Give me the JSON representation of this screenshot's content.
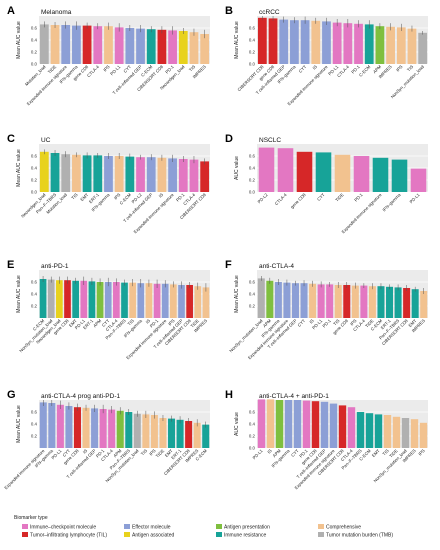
{
  "colors": {
    "immune_checkpoint": "#e377c2",
    "til": "#d62728",
    "effector": "#8c9fd6",
    "antigen_associated": "#e8d21d",
    "antigen_presentation": "#7fbf3f",
    "immune_resistance": "#17a398",
    "comprehensive": "#f2c28f",
    "tmb": "#b0b0b0"
  },
  "legend": {
    "title": "Biomarker type",
    "items": [
      {
        "key": "immune_checkpoint",
        "label": "Immune–checkpoint molecule"
      },
      {
        "key": "effector",
        "label": "Effector molecule"
      },
      {
        "key": "antigen_presentation",
        "label": "Antigen presentation"
      },
      {
        "key": "comprehensive",
        "label": "Comprehensive"
      },
      {
        "key": "til",
        "label": "Tumor–infiltrating lymphocyte (TIL)"
      },
      {
        "key": "antigen_associated",
        "label": "Antigen associated"
      },
      {
        "key": "immune_resistance",
        "label": "Immune resistance"
      },
      {
        "key": "tmb",
        "label": "Tumor mutation burden (TMB)"
      }
    ]
  },
  "chart_data": [
    {
      "panel": "A",
      "title": "Melanoma",
      "type": "bar",
      "ylabel": "Mean AUC value",
      "ylim": [
        0,
        0.8
      ],
      "yticks": [
        0.0,
        0.2,
        0.4,
        0.6
      ],
      "categories": [
        "Mutation_load",
        "TIDE",
        "Expanded immune signature",
        "IFN–gamma",
        "gene CD8",
        "CTLA-4",
        "IPS",
        "PD-L1",
        "CYT",
        "T cell–inflamed GEP",
        "C-ECM",
        "CIBERSORT CD8",
        "PD-1",
        "Neoantigen_load",
        "TIS",
        "IMPRES"
      ],
      "values": [
        0.66,
        0.65,
        0.65,
        0.64,
        0.64,
        0.63,
        0.63,
        0.61,
        0.6,
        0.59,
        0.58,
        0.57,
        0.56,
        0.55,
        0.53,
        0.5
      ],
      "types": [
        "tmb",
        "comprehensive",
        "effector",
        "effector",
        "til",
        "immune_checkpoint",
        "comprehensive",
        "immune_checkpoint",
        "effector",
        "effector",
        "immune_resistance",
        "til",
        "immune_checkpoint",
        "antigen_associated",
        "comprehensive",
        "comprehensive"
      ],
      "errors": [
        0.05,
        0.05,
        0.06,
        0.07,
        0.05,
        0.05,
        0.06,
        0.07,
        0.05,
        0.06,
        0.05,
        0.06,
        0.07,
        0.05,
        0.06,
        0.07
      ]
    },
    {
      "panel": "B",
      "title": "ccRCC",
      "type": "bar",
      "ylabel": "Mean AUC value",
      "ylim": [
        0,
        0.8
      ],
      "yticks": [
        0.0,
        0.2,
        0.4,
        0.6
      ],
      "categories": [
        "CIBERSORT CD8",
        "gene CD8",
        "T cell–inflamed GEP",
        "IFN–gamma",
        "CYT",
        "IS",
        "Expanded immune signature",
        "PD-L1",
        "CTLA-4",
        "PD-1",
        "C-ECM",
        "APM",
        "IMPRES",
        "IPS",
        "TIS",
        "NonSyn_mutation_load"
      ],
      "values": [
        0.77,
        0.76,
        0.74,
        0.73,
        0.73,
        0.72,
        0.71,
        0.69,
        0.68,
        0.67,
        0.66,
        0.63,
        0.62,
        0.61,
        0.59,
        0.52
      ],
      "types": [
        "til",
        "til",
        "effector",
        "effector",
        "effector",
        "comprehensive",
        "effector",
        "immune_checkpoint",
        "immune_checkpoint",
        "immune_checkpoint",
        "immune_resistance",
        "antigen_presentation",
        "comprehensive",
        "comprehensive",
        "comprehensive",
        "tmb"
      ],
      "errors": [
        0.04,
        0.04,
        0.05,
        0.05,
        0.06,
        0.05,
        0.06,
        0.06,
        0.07,
        0.06,
        0.07,
        0.05,
        0.06,
        0.06,
        0.05,
        0.03
      ]
    },
    {
      "panel": "C",
      "title": "UC",
      "type": "bar",
      "ylabel": "Mean AUC value",
      "ylim": [
        0,
        0.8
      ],
      "yticks": [
        0.0,
        0.2,
        0.4,
        0.6
      ],
      "categories": [
        "Neoantigen_load",
        "Pan–F–TBRS",
        "Mutation_load",
        "TIS",
        "EMT",
        "ERT-1",
        "IFN–gamma",
        "IPS",
        "C-ECM",
        "PD-L2",
        "T cell–inflamed GEP",
        "IS",
        "Expanded immune signature",
        "PD-1",
        "CTLA-4",
        "CIBERSORT CD8"
      ],
      "values": [
        0.67,
        0.65,
        0.63,
        0.62,
        0.61,
        0.61,
        0.6,
        0.6,
        0.59,
        0.58,
        0.58,
        0.57,
        0.56,
        0.55,
        0.54,
        0.51
      ],
      "types": [
        "antigen_associated",
        "immune_resistance",
        "tmb",
        "comprehensive",
        "immune_resistance",
        "immune_resistance",
        "effector",
        "comprehensive",
        "immune_resistance",
        "immune_checkpoint",
        "effector",
        "comprehensive",
        "effector",
        "immune_checkpoint",
        "immune_checkpoint",
        "til"
      ],
      "errors": [
        0.04,
        0.05,
        0.05,
        0.04,
        0.05,
        0.04,
        0.05,
        0.05,
        0.05,
        0.04,
        0.05,
        0.05,
        0.06,
        0.05,
        0.06,
        0.05
      ]
    },
    {
      "panel": "D",
      "title": "NSCLC",
      "type": "bar",
      "ylabel": "AUC value",
      "ylim": [
        0,
        0.8
      ],
      "yticks": [
        0.0,
        0.2,
        0.4,
        0.6
      ],
      "categories": [
        "PD-L2",
        "CTLA-4",
        "gene CD8",
        "CYT",
        "TIDE",
        "PD-1",
        "Expanded immune signature",
        "IFN–gamma",
        "PD-L1"
      ],
      "values": [
        0.74,
        0.73,
        0.67,
        0.66,
        0.62,
        0.6,
        0.57,
        0.54,
        0.39
      ],
      "types": [
        "immune_checkpoint",
        "immune_checkpoint",
        "til",
        "immune_resistance",
        "comprehensive",
        "immune_checkpoint",
        "immune_resistance",
        "immune_resistance",
        "immune_checkpoint"
      ]
    },
    {
      "panel": "E",
      "title": "anti-PD-1",
      "type": "bar",
      "ylabel": "Mean AUC value",
      "ylim": [
        0,
        0.8
      ],
      "yticks": [
        0.2,
        0.4,
        0.6
      ],
      "categories": [
        "C-ECM",
        "NonSyn_mutation_load",
        "Neoantigen_load",
        "gene CD8",
        "EMT",
        "PD-L1",
        "ERT-1",
        "APM",
        "CYT",
        "CTLA-4",
        "Pan–F–TBRS",
        "TIS",
        "IFN–gamma",
        "IS",
        "PD-1",
        "Expanded immune signature",
        "IPS",
        "T cell–inflamed GEP",
        "CIBERSORT CD8",
        "TIDE",
        "IMPRES"
      ],
      "values": [
        0.65,
        0.64,
        0.63,
        0.63,
        0.62,
        0.62,
        0.61,
        0.6,
        0.6,
        0.6,
        0.59,
        0.59,
        0.58,
        0.58,
        0.57,
        0.57,
        0.56,
        0.55,
        0.55,
        0.53,
        0.51
      ],
      "types": [
        "immune_resistance",
        "tmb",
        "antigen_associated",
        "til",
        "immune_resistance",
        "immune_checkpoint",
        "immune_resistance",
        "antigen_presentation",
        "effector",
        "immune_checkpoint",
        "immune_resistance",
        "comprehensive",
        "effector",
        "comprehensive",
        "immune_checkpoint",
        "effector",
        "comprehensive",
        "effector",
        "til",
        "comprehensive",
        "comprehensive"
      ],
      "errors": [
        0.05,
        0.05,
        0.06,
        0.06,
        0.05,
        0.07,
        0.06,
        0.06,
        0.07,
        0.06,
        0.05,
        0.06,
        0.07,
        0.06,
        0.07,
        0.06,
        0.05,
        0.06,
        0.05,
        0.06,
        0.07
      ]
    },
    {
      "panel": "F",
      "title": "anti-CTLA-4",
      "type": "bar",
      "ylabel": "Mean AUC value",
      "ylim": [
        0,
        0.8
      ],
      "yticks": [
        0.2,
        0.4,
        0.6
      ],
      "categories": [
        "NonSyn_mutation_load",
        "APM",
        "IFN–gamma",
        "Expanded immune signature",
        "T cell–inflamed GEP",
        "CYT",
        "IS",
        "PD-L1",
        "PD-1",
        "TIS",
        "gene CD8",
        "IPS",
        "CTLA-4",
        "TIDE",
        "C-ECM",
        "ERT-1",
        "Pan–F–TBRS",
        "CIBERSORT CD8",
        "EMT",
        "IMPRES"
      ],
      "values": [
        0.66,
        0.62,
        0.6,
        0.59,
        0.58,
        0.58,
        0.57,
        0.56,
        0.56,
        0.55,
        0.55,
        0.54,
        0.54,
        0.53,
        0.53,
        0.52,
        0.51,
        0.5,
        0.48,
        0.45
      ],
      "types": [
        "tmb",
        "antigen_presentation",
        "effector",
        "effector",
        "effector",
        "effector",
        "comprehensive",
        "immune_checkpoint",
        "immune_checkpoint",
        "comprehensive",
        "til",
        "comprehensive",
        "immune_checkpoint",
        "comprehensive",
        "immune_resistance",
        "immune_resistance",
        "immune_resistance",
        "til",
        "immune_resistance",
        "comprehensive"
      ],
      "errors": [
        0.04,
        0.05,
        0.05,
        0.05,
        0.04,
        0.05,
        0.05,
        0.05,
        0.04,
        0.05,
        0.05,
        0.05,
        0.04,
        0.05,
        0.05,
        0.04,
        0.05,
        0.05,
        0.04,
        0.05
      ]
    },
    {
      "panel": "G",
      "title": "anti-CTLA-4 prog anti-PD-1",
      "type": "bar",
      "ylabel": "Mean AUC value",
      "ylim": [
        0,
        0.8
      ],
      "yticks": [
        0.2,
        0.4,
        0.6
      ],
      "categories": [
        "Expanded immune signature",
        "IFN–gamma",
        "PD-L1",
        "CYT",
        "gene CD8",
        "IS",
        "T cell–inflamed GEP",
        "PD-1",
        "CTLA-4",
        "APM",
        "Pan–F–TBRS",
        "NonSyn_mutation_load",
        "TIS",
        "IPS",
        "TIDE",
        "EMT",
        "ERT-1",
        "CIBERSORT CD8",
        "IMPRES",
        "C-ECM"
      ],
      "values": [
        0.76,
        0.75,
        0.72,
        0.7,
        0.68,
        0.67,
        0.66,
        0.65,
        0.64,
        0.62,
        0.6,
        0.57,
        0.56,
        0.55,
        0.5,
        0.49,
        0.47,
        0.45,
        0.42,
        0.39
      ],
      "types": [
        "effector",
        "effector",
        "immune_checkpoint",
        "effector",
        "til",
        "comprehensive",
        "effector",
        "immune_checkpoint",
        "immune_checkpoint",
        "antigen_presentation",
        "immune_resistance",
        "tmb",
        "comprehensive",
        "comprehensive",
        "comprehensive",
        "immune_resistance",
        "immune_resistance",
        "til",
        "comprehensive",
        "immune_resistance"
      ],
      "errors": [
        0.06,
        0.05,
        0.07,
        0.06,
        0.06,
        0.05,
        0.06,
        0.07,
        0.06,
        0.06,
        0.05,
        0.05,
        0.06,
        0.06,
        0.05,
        0.05,
        0.06,
        0.05,
        0.06,
        0.05
      ]
    },
    {
      "panel": "H",
      "title": "anti-CTLA-4 + anti-PD-1",
      "type": "bar",
      "ylabel": "AUC value",
      "ylim": [
        0,
        0.8
      ],
      "yticks": [
        0.0,
        0.2,
        0.4,
        0.6
      ],
      "categories": [
        "PD-L1",
        "IS",
        "APM",
        "IFN–gamma",
        "CYT",
        "PD-1",
        "gene CD8",
        "T cell–inflamed GEP",
        "Expanded immune signature",
        "CIBERSORT CD8",
        "CTLA-4",
        "Pan–F–TBRS",
        "C-ECM",
        "EMT",
        "TIS",
        "TIDE",
        "NonSyn_mutation_load",
        "IMPRES",
        "IPS"
      ],
      "values": [
        0.81,
        0.81,
        0.8,
        0.8,
        0.8,
        0.79,
        0.78,
        0.77,
        0.74,
        0.71,
        0.68,
        0.6,
        0.58,
        0.56,
        0.55,
        0.52,
        0.5,
        0.48,
        0.42
      ],
      "types": [
        "immune_checkpoint",
        "comprehensive",
        "antigen_presentation",
        "effector",
        "effector",
        "immune_checkpoint",
        "til",
        "effector",
        "effector",
        "til",
        "immune_checkpoint",
        "immune_resistance",
        "immune_resistance",
        "immune_resistance",
        "comprehensive",
        "comprehensive",
        "tmb",
        "comprehensive",
        "comprehensive"
      ]
    }
  ]
}
